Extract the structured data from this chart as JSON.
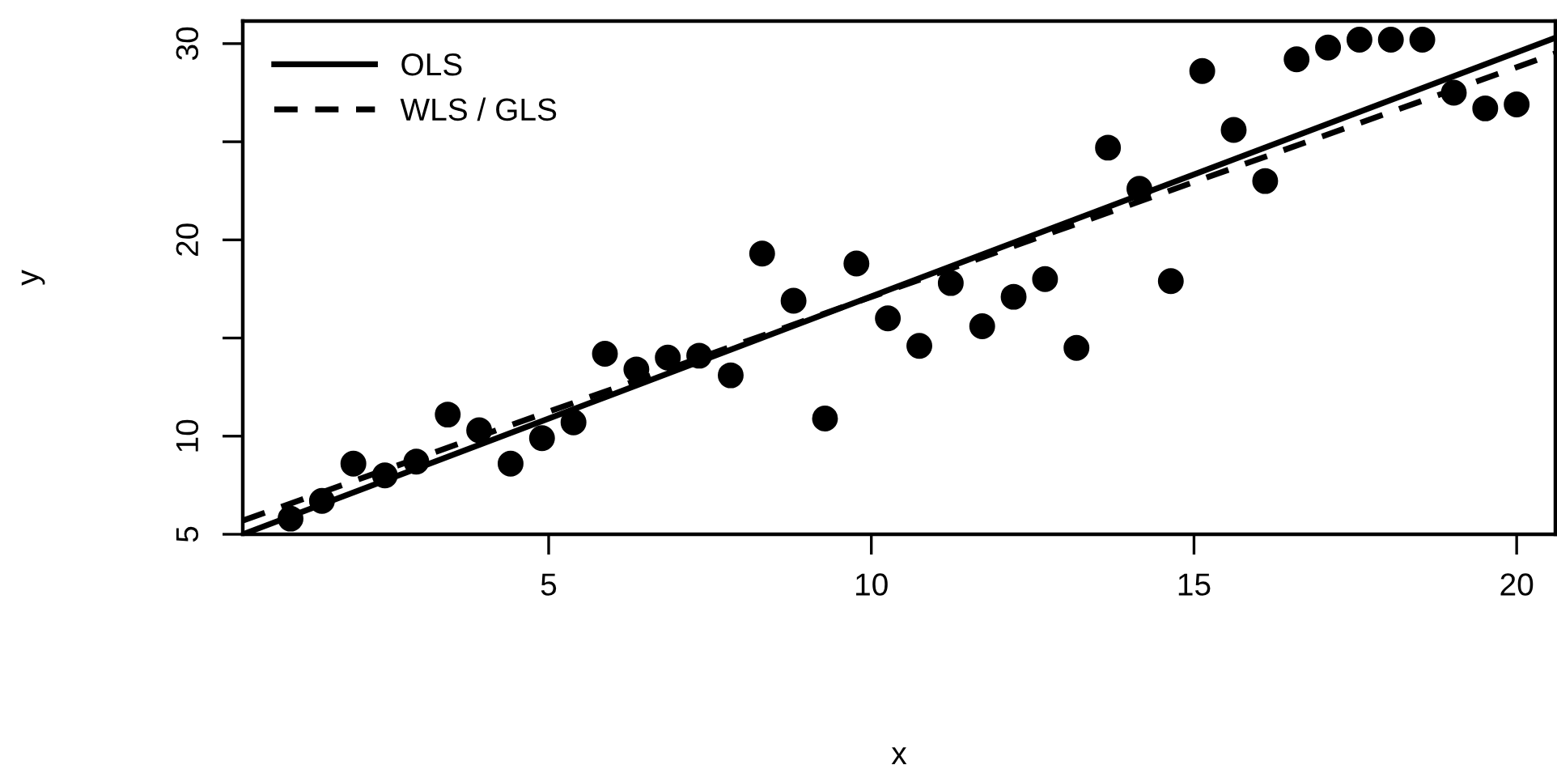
{
  "chart_data": {
    "type": "scatter",
    "xlabel": "x",
    "ylabel": "y",
    "xlim": [
      0.26,
      20.6
    ],
    "ylim": [
      5,
      31.15
    ],
    "xticks": [
      5,
      10,
      15,
      20
    ],
    "yticks": [
      5,
      10,
      {
        "value": 15,
        "label": null
      },
      20,
      {
        "value": 25,
        "label": null
      },
      30
    ],
    "grid": false,
    "legend": "top left",
    "series": [
      {
        "marker": "circle",
        "color": "#000000",
        "x": [
          1.0,
          1.487,
          1.974,
          2.462,
          2.949,
          3.436,
          3.923,
          4.41,
          4.897,
          5.385,
          5.872,
          6.359,
          6.846,
          7.333,
          7.821,
          8.308,
          8.795,
          9.282,
          9.769,
          10.256,
          10.744,
          11.231,
          11.718,
          12.205,
          12.692,
          13.179,
          13.667,
          14.154,
          14.641,
          15.128,
          15.615,
          16.103,
          16.59,
          17.077,
          17.564,
          18.051,
          18.538,
          19.026,
          19.513,
          20.0
        ],
        "values": [
          5.8,
          6.7,
          8.6,
          8.0,
          8.7,
          11.1,
          10.3,
          8.6,
          9.9,
          10.7,
          14.2,
          13.4,
          14.0,
          14.1,
          13.1,
          19.3,
          16.9,
          10.9,
          18.8,
          16.0,
          14.6,
          17.8,
          15.6,
          17.1,
          18.0,
          14.5,
          24.7,
          22.6,
          17.9,
          28.6,
          25.6,
          23.0,
          29.2,
          29.8,
          30.2,
          30.2,
          30.2,
          27.5,
          26.7,
          26.9
        ]
      },
      {
        "type": "line",
        "marker": "none",
        "name": "OLS",
        "color": "#000000",
        "line_style": "solid",
        "x": [
          0.26,
          20.6
        ],
        "values": [
          5.0,
          30.3
        ]
      },
      {
        "type": "line",
        "marker": "none",
        "name": "WLS / GLS",
        "color": "#000000",
        "line_style": "dashed",
        "x": [
          0.26,
          20.6
        ],
        "values": [
          5.7,
          29.5
        ]
      }
    ]
  }
}
